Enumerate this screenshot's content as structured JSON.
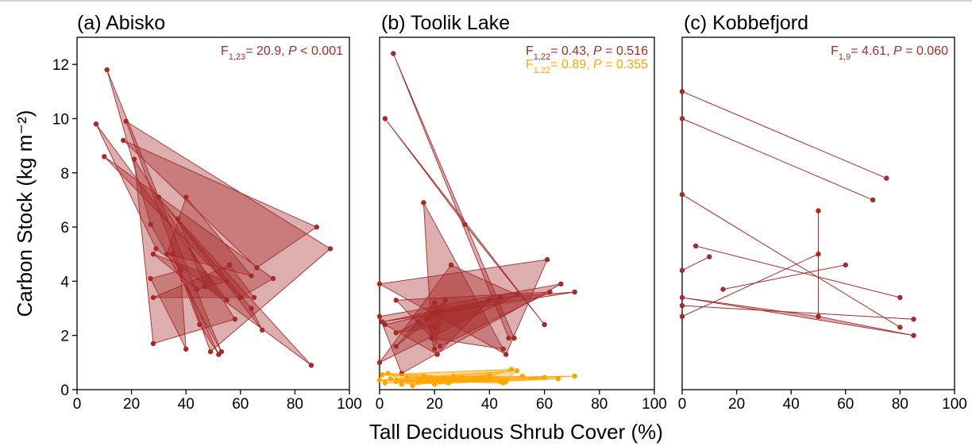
{
  "chart_data": {
    "type": "scatter",
    "xlabel": "Tall Deciduous Shrub Cover (%)",
    "ylabel": "Carbon Stock (kg m⁻²)",
    "xlim": [
      0,
      100
    ],
    "ylim": [
      0,
      13
    ],
    "xticks": [
      "0",
      "20",
      "40",
      "60",
      "80",
      "100"
    ],
    "yticks": [
      "0",
      "2",
      "4",
      "6",
      "8",
      "10",
      "12"
    ],
    "colors": {
      "dark_red": "#a52a2a",
      "orange": "#ffa500"
    },
    "panels": [
      {
        "title": "(a) Abisko",
        "stats": [
          {
            "color": "#a52a2a",
            "F": "F",
            "sub": "1,23",
            "rest": "= 20.9, ",
            "P": "P",
            "pval": " < 0.001"
          }
        ],
        "series": [
          {
            "color": "#a52a2a",
            "triangles": [
              [
                [
                  7,
                  9.8
                ],
                [
                  29,
                  5.2
                ],
                [
                  55,
                  3.3
                ]
              ],
              [
                [
                  11,
                  11.8
                ],
                [
                  27,
                  6.1
                ],
                [
                  53,
                  1.4
                ]
              ],
              [
                [
                  17,
                  9.2
                ],
                [
                  66,
                  4.5
                ],
                [
                  88,
                  6.0
                ]
              ],
              [
                [
                  18,
                  9.9
                ],
                [
                  49,
                  1.4
                ],
                [
                  93,
                  5.2
                ]
              ],
              [
                [
                  10,
                  8.6
                ],
                [
                  60,
                  3.4
                ],
                [
                  72,
                  4.1
                ]
              ],
              [
                [
                  21,
                  8.5
                ],
                [
                  58,
                  2.6
                ],
                [
                  28,
                  1.7
                ]
              ],
              [
                [
                  30,
                  7.1
                ],
                [
                  64,
                  3.0
                ],
                [
                  68,
                  2.2
                ]
              ],
              [
                [
                  37,
                  6.3
                ],
                [
                  86,
                  0.9
                ],
                [
                  47,
                  3.8
                ]
              ],
              [
                [
                  40,
                  7.1
                ],
                [
                  33,
                  5.0
                ],
                [
                  64,
                  4.2
                ]
              ],
              [
                [
                  35,
                  5.0
                ],
                [
                  45,
                  2.4
                ],
                [
                  52,
                  1.3
                ]
              ],
              [
                [
                  27,
                  4.1
                ],
                [
                  38,
                  4.4
                ],
                [
                  40,
                  1.5
                ]
              ],
              [
                [
                  28,
                  3.4
                ],
                [
                  65,
                  3.4
                ],
                [
                  56,
                  4.6
                ]
              ],
              [
                [
                  28,
                  5.0
                ],
                [
                  44,
                  3.7
                ],
                [
                  55,
                  4.0
                ]
              ]
            ]
          }
        ]
      },
      {
        "title": "(b) Toolik Lake",
        "stats": [
          {
            "color": "#a52a2a",
            "F": "F",
            "sub": "1,22",
            "rest": "= 0.43, ",
            "P": "P",
            "pval": " = 0.516"
          },
          {
            "color": "#ffa500",
            "F": "F",
            "sub": "1,22",
            "rest": "= 0.89, ",
            "P": "P",
            "pval": " = 0.355"
          }
        ],
        "series": [
          {
            "color": "#a52a2a",
            "triangles": [
              [
                [
                  5,
                  12.4
                ],
                [
                  47,
                  1.9
                ],
                [
                  49,
                  1.9
                ]
              ],
              [
                [
                  2,
                  10.0
                ],
                [
                  60,
                  2.4
                ],
                [
                  31,
                  6.1
                ]
              ],
              [
                [
                  16,
                  6.9
                ],
                [
                  45,
                  1.5
                ],
                [
                  19,
                  1.9
                ]
              ],
              [
                [
                  0,
                  3.9
                ],
                [
                  61,
                  4.8
                ],
                [
                  46,
                  1.3
                ]
              ],
              [
                [
                  0,
                  2.7
                ],
                [
                  66,
                  3.9
                ],
                [
                  8,
                  0.6
                ]
              ],
              [
                [
                  1,
                  2.5
                ],
                [
                  71,
                  3.6
                ],
                [
                  44,
                  3.4
                ]
              ],
              [
                [
                  6,
                  3.3
                ],
                [
                  62,
                  3.6
                ],
                [
                  22,
                  1.6
                ]
              ],
              [
                [
                  0,
                  1.0
                ],
                [
                  50,
                  3.5
                ],
                [
                  26,
                  4.6
                ]
              ],
              [
                [
                  2,
                  2.4
                ],
                [
                  40,
                  3.3
                ],
                [
                  21,
                  1.3
                ]
              ],
              [
                [
                  6,
                  1.6
                ],
                [
                  20,
                  3.2
                ],
                [
                  22,
                  2.9
                ]
              ],
              [
                [
                  17,
                  2.6
                ],
                [
                  24,
                  3.3
                ],
                [
                  20,
                  1.5
                ]
              ],
              [
                [
                  6,
                  2.1
                ],
                [
                  14,
                  2.5
                ],
                [
                  20,
                  2.3
                ]
              ]
            ]
          },
          {
            "color": "#ffa500",
            "triangles": [
              [
                [
                  1,
                  0.55
                ],
                [
                  48,
                  0.75
                ],
                [
                  36,
                  0.35
                ]
              ],
              [
                [
                  0,
                  0.35
                ],
                [
                  50,
                  0.7
                ],
                [
                  45,
                  0.25
                ]
              ],
              [
                [
                  2,
                  0.25
                ],
                [
                  60,
                  0.45
                ],
                [
                  27,
                  0.5
                ]
              ],
              [
                [
                  4,
                  0.4
                ],
                [
                  71,
                  0.5
                ],
                [
                  20,
                  0.2
                ]
              ],
              [
                [
                  6,
                  0.3
                ],
                [
                  65,
                  0.4
                ],
                [
                  44,
                  0.3
                ]
              ],
              [
                [
                  8,
                  0.2
                ],
                [
                  52,
                  0.5
                ],
                [
                  33,
                  0.4
                ]
              ],
              [
                [
                  10,
                  0.45
                ],
                [
                  46,
                  0.3
                ],
                [
                  18,
                  0.35
                ]
              ],
              [
                [
                  14,
                  0.3
                ],
                [
                  40,
                  0.55
                ],
                [
                  25,
                  0.25
                ]
              ],
              [
                [
                  3,
                  0.6
                ],
                [
                  30,
                  0.45
                ],
                [
                  12,
                  0.15
                ]
              ],
              [
                [
                  16,
                  0.5
                ],
                [
                  38,
                  0.35
                ],
                [
                  22,
                  0.3
                ]
              ]
            ]
          }
        ]
      },
      {
        "title": "(c) Kobbefjord",
        "stats": [
          {
            "color": "#a52a2a",
            "F": "F",
            "sub": "1,9",
            "rest": "= 4.61, ",
            "P": "P",
            "pval": " = 0.060"
          }
        ],
        "series": [
          {
            "color": "#a52a2a",
            "triangles": [
              [
                [
                  0,
                  11.0
                ],
                [
                  75,
                  7.8
                ]
              ],
              [
                [
                  0,
                  10.0
                ],
                [
                  70,
                  7.0
                ]
              ],
              [
                [
                  0,
                  7.2
                ],
                [
                  80,
                  2.3
                ]
              ],
              [
                [
                  0,
                  4.4
                ],
                [
                  10,
                  4.9
                ]
              ],
              [
                [
                  5,
                  5.3
                ],
                [
                  80,
                  3.4
                ]
              ],
              [
                [
                  15,
                  3.7
                ],
                [
                  60,
                  4.6
                ]
              ],
              [
                [
                  50,
                  6.6
                ],
                [
                  50,
                  2.7
                ]
              ],
              [
                [
                  0,
                  2.7
                ],
                [
                  50,
                  5.0
                ]
              ],
              [
                [
                  0,
                  3.1
                ],
                [
                  85,
                  2.6
                ]
              ],
              [
                [
                  0,
                  3.4
                ],
                [
                  50,
                  2.7
                ],
                [
                  85,
                  2.0
                ]
              ]
            ]
          }
        ]
      }
    ]
  }
}
